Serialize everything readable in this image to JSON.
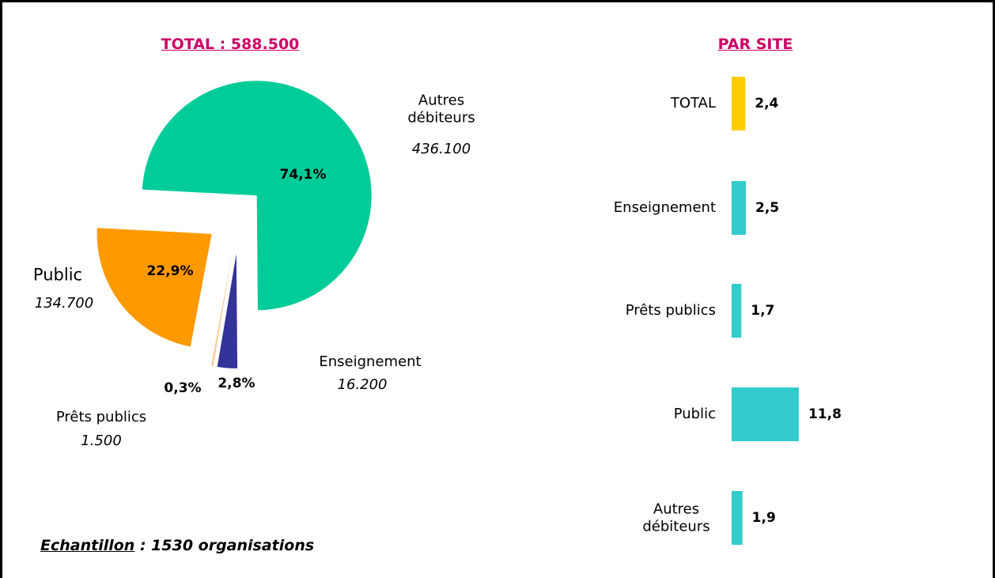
{
  "chart_data": [
    {
      "type": "pie",
      "title": "TOTAL : 588.500",
      "categories": [
        "Autres débiteurs",
        "Enseignement",
        "Prêts publics",
        "Public"
      ],
      "values": [
        74.1,
        2.8,
        0.3,
        22.9
      ],
      "value_labels": [
        "74,1%",
        "2,8%",
        "0,3%",
        "22,9%"
      ],
      "amount_labels": [
        "436.100",
        "16.200",
        "1.500",
        "134.700"
      ],
      "colors": [
        "#00cc99",
        "#333399",
        "#ffcc99",
        "#ff9900"
      ]
    },
    {
      "type": "hbar",
      "title": "PAR SITE",
      "categories": [
        "TOTAL",
        "Enseignement",
        "Prêts publics",
        "Public",
        "Autres débiteurs"
      ],
      "values": [
        2.4,
        2.5,
        1.7,
        11.8,
        1.9
      ],
      "value_labels": [
        "2,4",
        "2,5",
        "1,7",
        "11,8",
        "1,9"
      ],
      "colors": [
        "#ffcc00",
        "#33cccc",
        "#33cccc",
        "#33cccc",
        "#33cccc"
      ]
    }
  ],
  "footnote": {
    "label": "Echantillon",
    "text": ": 1530 organisations"
  }
}
